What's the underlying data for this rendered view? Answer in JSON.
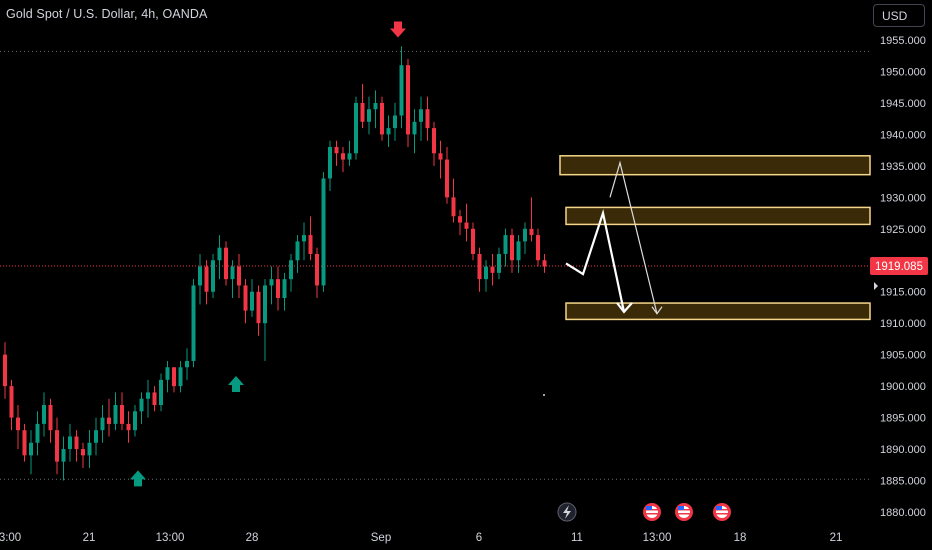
{
  "header": {
    "symbol_title": "Gold Spot / U.S. Dollar, 4h, OANDA",
    "currency_label": "USD"
  },
  "colors": {
    "background": "#000000",
    "up_candle": "#089981",
    "down_candle": "#f23645",
    "zone_border": "#f5d68a",
    "zone_fill": "#3b2a08",
    "projection_line": "#ffffff",
    "price_label_bg": "#f23645"
  },
  "chart_data": {
    "type": "candlestick",
    "x_tick_labels": [
      "3:00",
      "21",
      "13:00",
      "28",
      "Sep",
      "6",
      "11",
      "13:00",
      "18",
      "21"
    ],
    "y_tick_labels": [
      "1955.000",
      "1950.000",
      "1945.000",
      "1940.000",
      "1935.000",
      "1930.000",
      "1925.000",
      "1920.000",
      "1915.000",
      "1910.000",
      "1905.000",
      "1900.000",
      "1895.000",
      "1890.000",
      "1885.000",
      "1880.000"
    ],
    "ylim": [
      1879,
      1958
    ],
    "current_price": "1919.085",
    "current_price_value": 1919.085,
    "horizontal_levels": [
      1953.2,
      1885.2
    ],
    "candles_ohlc": [
      [
        1905,
        1907,
        1898,
        1900
      ],
      [
        1900,
        1901,
        1893,
        1895
      ],
      [
        1895,
        1897,
        1890,
        1893
      ],
      [
        1893,
        1894,
        1888,
        1889
      ],
      [
        1889,
        1893,
        1886,
        1891
      ],
      [
        1891,
        1896,
        1889,
        1894
      ],
      [
        1894,
        1899,
        1892,
        1897
      ],
      [
        1897,
        1898,
        1891,
        1893
      ],
      [
        1893,
        1895,
        1886,
        1888
      ],
      [
        1888,
        1892,
        1885,
        1890
      ],
      [
        1890,
        1894,
        1888,
        1892
      ],
      [
        1892,
        1893,
        1888,
        1890
      ],
      [
        1890,
        1891,
        1887,
        1889
      ],
      [
        1889,
        1893,
        1887,
        1891
      ],
      [
        1891,
        1895,
        1889,
        1893
      ],
      [
        1893,
        1897,
        1891,
        1895
      ],
      [
        1895,
        1898,
        1892,
        1894
      ],
      [
        1894,
        1899,
        1893,
        1897
      ],
      [
        1897,
        1899,
        1893,
        1894
      ],
      [
        1894,
        1896,
        1891,
        1893
      ],
      [
        1893,
        1897,
        1892,
        1896
      ],
      [
        1896,
        1899,
        1894,
        1898
      ],
      [
        1898,
        1901,
        1895,
        1899
      ],
      [
        1899,
        1900,
        1896,
        1897
      ],
      [
        1897,
        1902,
        1896,
        1901
      ],
      [
        1901,
        1904,
        1899,
        1903
      ],
      [
        1903,
        1903,
        1899,
        1900
      ],
      [
        1900,
        1904,
        1899,
        1903
      ],
      [
        1903,
        1906,
        1901,
        1904
      ],
      [
        1904,
        1917,
        1903,
        1916
      ],
      [
        1916,
        1921,
        1913,
        1919
      ],
      [
        1919,
        1920,
        1913,
        1915
      ],
      [
        1915,
        1921,
        1914,
        1920
      ],
      [
        1920,
        1924,
        1917,
        1922
      ],
      [
        1922,
        1923,
        1916,
        1917
      ],
      [
        1917,
        1920,
        1914,
        1919
      ],
      [
        1919,
        1921,
        1914,
        1916
      ],
      [
        1916,
        1917,
        1910,
        1912
      ],
      [
        1912,
        1917,
        1911,
        1915
      ],
      [
        1915,
        1916,
        1908,
        1910
      ],
      [
        1910,
        1917,
        1904,
        1916
      ],
      [
        1916,
        1919,
        1913,
        1917
      ],
      [
        1917,
        1919,
        1912,
        1914
      ],
      [
        1914,
        1918,
        1912,
        1917
      ],
      [
        1917,
        1921,
        1915,
        1920
      ],
      [
        1920,
        1924,
        1918,
        1923
      ],
      [
        1923,
        1926,
        1920,
        1924
      ],
      [
        1924,
        1927,
        1920,
        1921
      ],
      [
        1921,
        1922,
        1914,
        1916
      ],
      [
        1916,
        1934,
        1915,
        1933
      ],
      [
        1933,
        1939,
        1931,
        1938
      ],
      [
        1938,
        1939,
        1935,
        1937
      ],
      [
        1937,
        1938,
        1934,
        1936
      ],
      [
        1936,
        1939,
        1935,
        1937
      ],
      [
        1937,
        1946,
        1936,
        1945
      ],
      [
        1945,
        1948,
        1941,
        1942
      ],
      [
        1942,
        1946,
        1940,
        1944
      ],
      [
        1944,
        1947,
        1941,
        1945
      ],
      [
        1945,
        1946,
        1939,
        1940
      ],
      [
        1940,
        1943,
        1938,
        1941
      ],
      [
        1941,
        1945,
        1939,
        1943
      ],
      [
        1943,
        1954,
        1941,
        1951
      ],
      [
        1951,
        1952,
        1938,
        1940
      ],
      [
        1940,
        1944,
        1937,
        1942
      ],
      [
        1942,
        1946,
        1939,
        1944
      ],
      [
        1944,
        1946,
        1939,
        1941
      ],
      [
        1941,
        1942,
        1935,
        1937
      ],
      [
        1937,
        1939,
        1933,
        1936
      ],
      [
        1936,
        1938,
        1929,
        1930
      ],
      [
        1930,
        1933,
        1926,
        1927
      ],
      [
        1927,
        1928,
        1924,
        1926
      ],
      [
        1926,
        1929,
        1923,
        1925
      ],
      [
        1925,
        1926,
        1920,
        1921
      ],
      [
        1921,
        1922,
        1915,
        1917
      ],
      [
        1917,
        1920,
        1915,
        1919
      ],
      [
        1919,
        1921,
        1916,
        1918
      ],
      [
        1918,
        1922,
        1917,
        1921
      ],
      [
        1921,
        1925,
        1919,
        1924
      ],
      [
        1924,
        1925,
        1918,
        1920
      ],
      [
        1920,
        1924,
        1918,
        1923
      ],
      [
        1923,
        1926,
        1921,
        1925
      ],
      [
        1925,
        1930,
        1923,
        1924
      ],
      [
        1924,
        1925,
        1919,
        1920
      ],
      [
        1920,
        1921,
        1918,
        1919
      ]
    ],
    "zones": [
      {
        "top": 1936.6,
        "bottom": 1933.6
      },
      {
        "top": 1928.4,
        "bottom": 1925.7
      },
      {
        "top": 1913.2,
        "bottom": 1910.6
      }
    ],
    "markers": [
      {
        "type": "arrow-down",
        "price": 1956.5,
        "color": "#f23645"
      },
      {
        "type": "arrow-up",
        "price": 1900.5,
        "color": "#089981"
      },
      {
        "type": "arrow-up",
        "price": 1885.5,
        "color": "#089981"
      }
    ],
    "projection_path": [
      1919.5,
      1917.8,
      1927.5,
      1911.8
    ],
    "projection_path_2": [
      1930,
      1935.5,
      1911.5
    ]
  }
}
